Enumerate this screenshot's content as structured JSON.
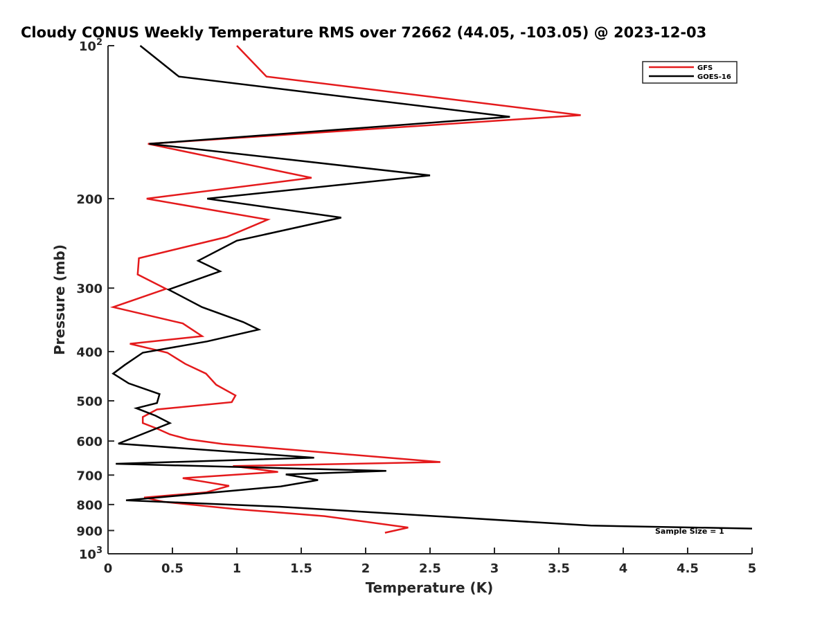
{
  "chart_data": {
    "type": "line",
    "title": "Cloudy CONUS Weekly Temperature RMS over 72662 (44.05, -103.05) @ 2023-12-03",
    "xlabel": "Temperature (K)",
    "ylabel": "Pressure (mb)",
    "xlim": [
      0,
      5
    ],
    "ylim": [
      100,
      1000
    ],
    "y_scale": "log",
    "y_reversed": true,
    "x_ticks": [
      "0",
      "0.5",
      "1",
      "1.5",
      "2",
      "2.5",
      "3",
      "3.5",
      "4",
      "4.5",
      "5"
    ],
    "y_ticks": [
      {
        "value": 100,
        "base": "10",
        "exp": "2"
      },
      {
        "value": 200,
        "label": "200"
      },
      {
        "value": 300,
        "label": "300"
      },
      {
        "value": 400,
        "label": "400"
      },
      {
        "value": 500,
        "label": "500"
      },
      {
        "value": 600,
        "label": "600"
      },
      {
        "value": 700,
        "label": "700"
      },
      {
        "value": 800,
        "label": "800"
      },
      {
        "value": 900,
        "label": "900"
      },
      {
        "value": 1000,
        "base": "10",
        "exp": "3"
      }
    ],
    "grid": false,
    "legend_position": "top-right",
    "annotation": "Sample Size = 1",
    "series": [
      {
        "name": "GFS",
        "color": "#e41a1c",
        "points": [
          [
            1.0,
            100
          ],
          [
            1.23,
            115
          ],
          [
            3.67,
            137
          ],
          [
            0.31,
            156
          ],
          [
            1.58,
            182
          ],
          [
            0.3,
            200
          ],
          [
            1.24,
            220
          ],
          [
            0.92,
            238
          ],
          [
            0.24,
            262
          ],
          [
            0.23,
            282
          ],
          [
            0.45,
            301
          ],
          [
            0.04,
            327
          ],
          [
            0.58,
            352
          ],
          [
            0.73,
            373
          ],
          [
            0.17,
            386
          ],
          [
            0.46,
            402
          ],
          [
            0.6,
            423
          ],
          [
            0.76,
            442
          ],
          [
            0.84,
            465
          ],
          [
            0.99,
            488
          ],
          [
            0.96,
            503
          ],
          [
            0.38,
            520
          ],
          [
            0.27,
            538
          ],
          [
            0.27,
            553
          ],
          [
            0.38,
            567
          ],
          [
            0.48,
            582
          ],
          [
            0.62,
            595
          ],
          [
            0.89,
            608
          ],
          [
            2.58,
            660
          ],
          [
            0.97,
            672
          ],
          [
            1.32,
            690
          ],
          [
            0.58,
            710
          ],
          [
            0.94,
            735
          ],
          [
            0.76,
            757
          ],
          [
            0.28,
            775
          ],
          [
            0.43,
            790
          ],
          [
            1.0,
            817
          ],
          [
            1.68,
            843
          ],
          [
            2.33,
            888
          ],
          [
            2.15,
            909
          ]
        ]
      },
      {
        "name": "GOES-16",
        "color": "#000000",
        "points": [
          [
            0.25,
            100
          ],
          [
            0.55,
            115
          ],
          [
            3.12,
            138
          ],
          [
            0.32,
            156
          ],
          [
            2.5,
            180
          ],
          [
            0.77,
            200
          ],
          [
            1.81,
            218
          ],
          [
            1.0,
            242
          ],
          [
            0.7,
            265
          ],
          [
            0.87,
            278
          ],
          [
            0.47,
            302
          ],
          [
            0.73,
            327
          ],
          [
            1.05,
            350
          ],
          [
            1.17,
            362
          ],
          [
            0.77,
            382
          ],
          [
            0.27,
            402
          ],
          [
            0.13,
            425
          ],
          [
            0.04,
            442
          ],
          [
            0.16,
            462
          ],
          [
            0.4,
            485
          ],
          [
            0.38,
            505
          ],
          [
            0.22,
            517
          ],
          [
            0.37,
            535
          ],
          [
            0.48,
            553
          ],
          [
            0.38,
            566
          ],
          [
            0.08,
            607
          ],
          [
            1.6,
            647
          ],
          [
            0.06,
            665
          ],
          [
            2.16,
            687
          ],
          [
            1.38,
            698
          ],
          [
            1.63,
            716
          ],
          [
            1.34,
            737
          ],
          [
            0.14,
            785
          ],
          [
            1.33,
            808
          ],
          [
            3.75,
            880
          ],
          [
            5.0,
            892
          ]
        ]
      }
    ]
  }
}
